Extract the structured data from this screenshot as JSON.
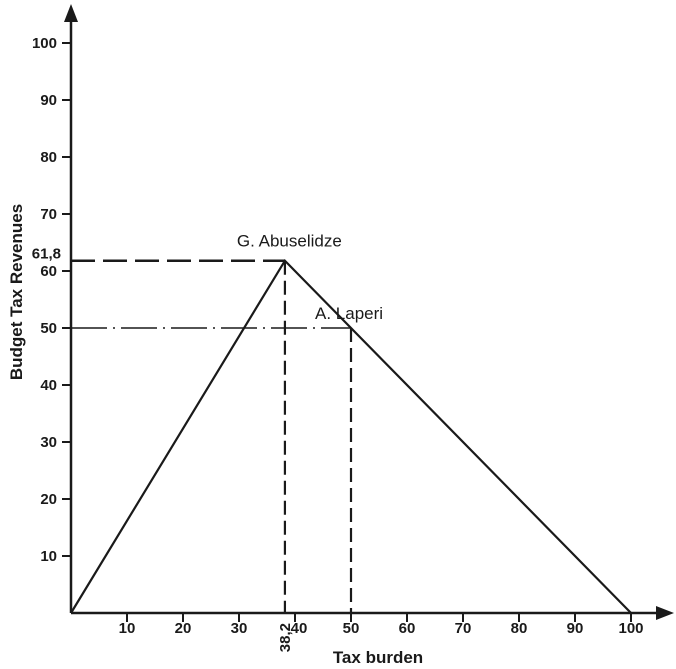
{
  "chart_data": {
    "type": "line",
    "title": "",
    "xlabel": "Tax burden",
    "ylabel": "Budget Tax Revenues",
    "xlim": [
      0,
      100
    ],
    "ylim": [
      0,
      100
    ],
    "x_ticks": [
      10,
      20,
      30,
      40,
      50,
      60,
      70,
      80,
      90,
      100
    ],
    "y_ticks": [
      10,
      20,
      30,
      40,
      50,
      60,
      70,
      80,
      90,
      100
    ],
    "series": [
      {
        "points": [
          {
            "x": 0,
            "y": 0
          },
          {
            "x": 38.2,
            "y": 61.8
          },
          {
            "x": 100,
            "y": 0
          }
        ]
      }
    ],
    "special_ticks": {
      "x": {
        "value": 38.2,
        "label": "38,2"
      },
      "y": {
        "value": 61.8,
        "label": "61,8"
      }
    },
    "annotations": [
      {
        "id": "abuselidze",
        "text": "G. Abuselidze",
        "x": 38.2,
        "y": 61.8
      },
      {
        "id": "laperi",
        "text": "A. Laperi",
        "x": 50,
        "y": 50
      }
    ],
    "reference_lines": [
      {
        "x": 38.2,
        "y": 61.8
      },
      {
        "x": 50,
        "y": 50
      }
    ],
    "grid": false,
    "legend": "none"
  }
}
